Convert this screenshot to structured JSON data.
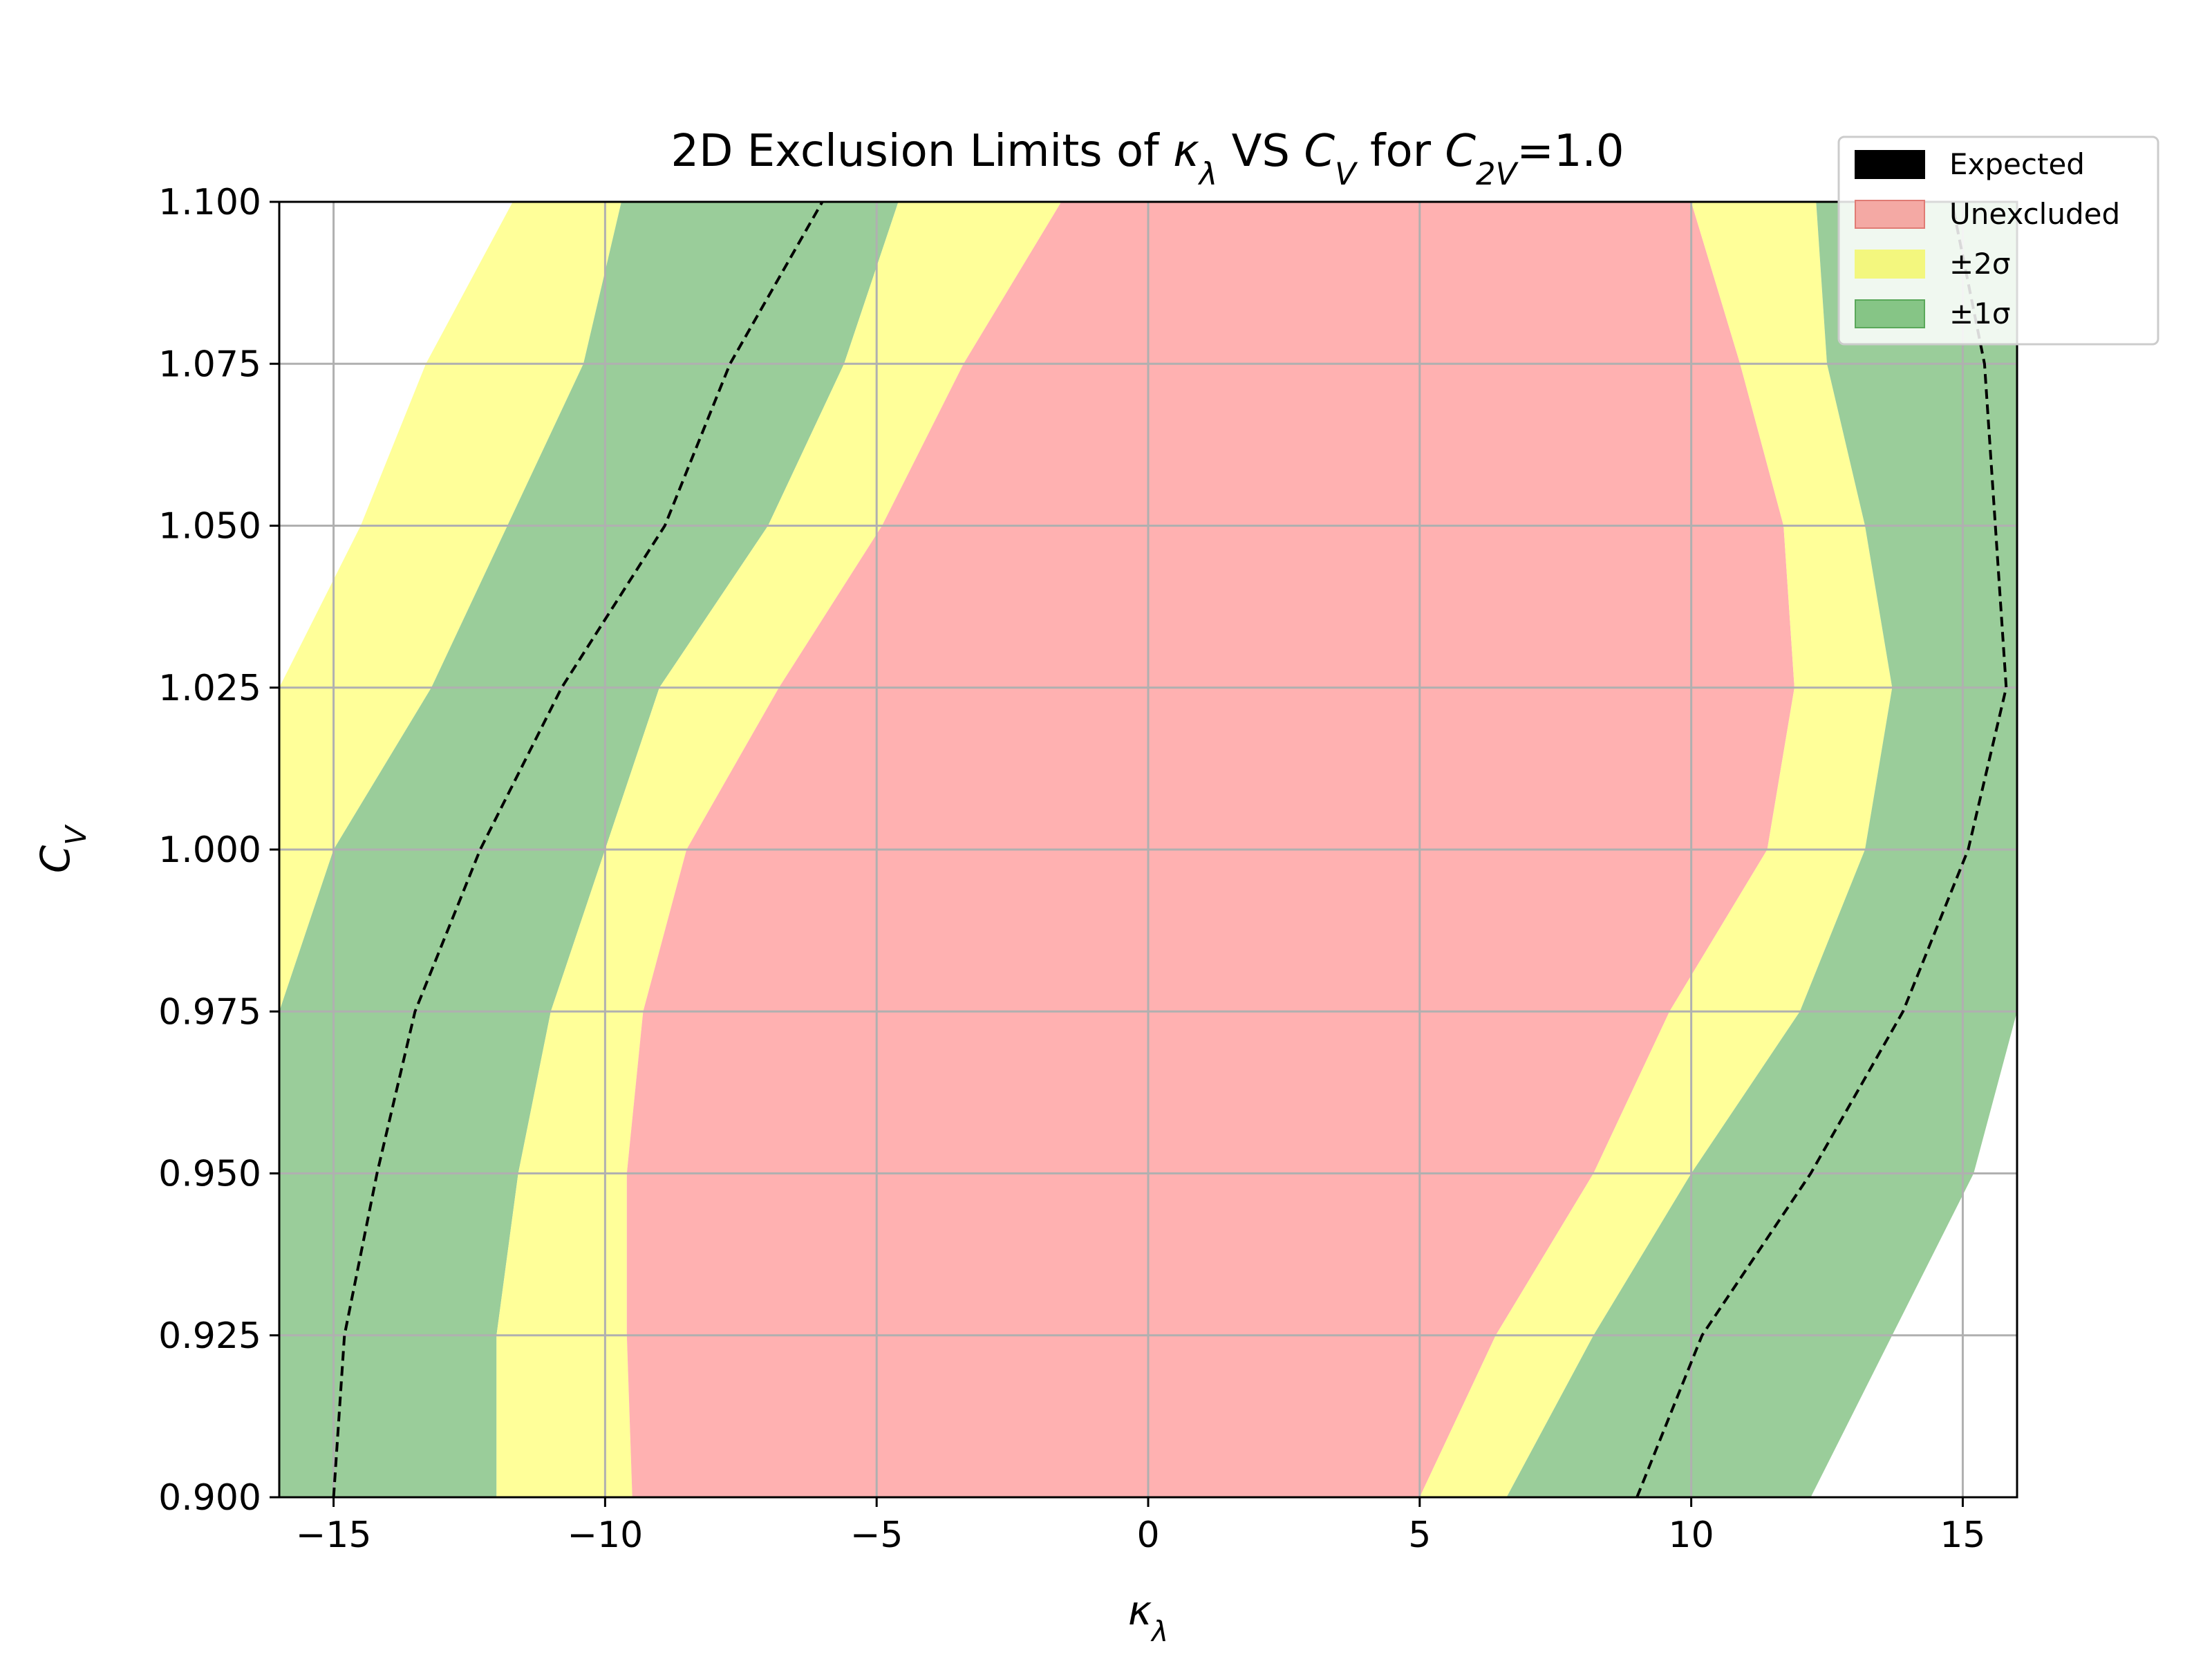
{
  "chart_data": {
    "type": "contour",
    "title_parts": [
      "2D Exclusion Limits of ",
      "κ",
      "λ",
      " VS ",
      "C",
      "V",
      " for ",
      "C",
      "2V",
      "=1.0"
    ],
    "xlabel_parts": [
      "κ",
      "λ"
    ],
    "ylabel_parts": [
      "C",
      "V"
    ],
    "xlim": [
      -16,
      16
    ],
    "ylim": [
      0.9,
      1.1
    ],
    "xticks": [
      -15,
      -10,
      -5,
      0,
      5,
      10,
      15
    ],
    "xtick_labels": [
      "−15",
      "−10",
      "−5",
      "0",
      "5",
      "10",
      "15"
    ],
    "yticks": [
      0.9,
      0.925,
      0.95,
      0.975,
      1.0,
      1.025,
      1.05,
      1.075,
      1.1
    ],
    "ytick_labels": [
      "0.900",
      "0.925",
      "0.950",
      "0.975",
      "1.000",
      "1.025",
      "1.050",
      "1.075",
      "1.100"
    ],
    "grid": true,
    "legend_position": "top-right",
    "legend": [
      {
        "label": "Expected",
        "color": "#000000"
      },
      {
        "label": "Unexcluded",
        "color": "#f4a9a4"
      },
      {
        "label": "±2σ",
        "color": "#f3f77e"
      },
      {
        "label": "±1σ",
        "color": "#86c586"
      }
    ],
    "colors": {
      "unexcluded": "#ffb1b1",
      "two_sigma": "#ffff99",
      "one_sigma": "#9acd9a",
      "expected": "#000000",
      "grid": "#b0b0b0"
    },
    "y_samples": [
      0.9,
      0.925,
      0.95,
      0.975,
      1.0,
      1.025,
      1.05,
      1.075,
      1.1
    ],
    "left_boundaries": {
      "outer_2sigma": [
        -16,
        -16,
        -16,
        -16,
        -16,
        -16,
        -14.5,
        -13.3,
        -11.7
      ],
      "outer_1sigma": [
        -16,
        -16,
        -16,
        -16,
        -15.0,
        -13.2,
        -11.8,
        -10.4,
        -9.7
      ],
      "expected": [
        -15.0,
        -14.8,
        -14.2,
        -13.5,
        -12.3,
        -10.8,
        -8.9,
        -7.7,
        -6.0
      ],
      "inner_1sigma": [
        -12.0,
        -12.0,
        -11.6,
        -11.0,
        -10.0,
        -9.0,
        -7.0,
        -5.6,
        -4.6
      ],
      "inner_2sigma": [
        -9.5,
        -9.6,
        -9.6,
        -9.3,
        -8.5,
        -6.8,
        -4.9,
        -3.4,
        -1.6
      ]
    },
    "right_boundaries": {
      "inner_2sigma": [
        5.0,
        6.4,
        8.2,
        9.6,
        11.4,
        11.9,
        11.7,
        10.9,
        10.0
      ],
      "inner_1sigma": [
        6.6,
        8.2,
        10.0,
        12.0,
        13.2,
        13.7,
        13.2,
        12.5,
        12.3
      ],
      "expected": [
        9.0,
        10.2,
        12.2,
        13.9,
        15.1,
        15.8,
        15.6,
        15.4,
        14.8
      ],
      "outer_1sigma": [
        12.2,
        13.7,
        15.2,
        16,
        16,
        16,
        16,
        16,
        16
      ],
      "outer_2sigma": [
        16,
        16,
        16,
        16,
        16,
        16,
        16,
        16,
        16
      ]
    }
  }
}
